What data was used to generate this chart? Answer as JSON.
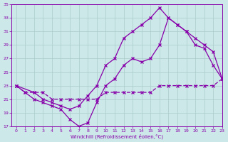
{
  "xlabel": "Windchill (Refroidissement éolien,°C)",
  "xlim": [
    -0.5,
    23
  ],
  "ylim": [
    17,
    35
  ],
  "yticks": [
    17,
    19,
    21,
    23,
    25,
    27,
    29,
    31,
    33,
    35
  ],
  "xticks": [
    0,
    1,
    2,
    3,
    4,
    5,
    6,
    7,
    8,
    9,
    10,
    11,
    12,
    13,
    14,
    15,
    16,
    17,
    18,
    19,
    20,
    21,
    22,
    23
  ],
  "bg_color": "#cce8e8",
  "grid_color": "#aacccc",
  "line_color": "#8800aa",
  "line1_x": [
    0,
    1,
    2,
    3,
    4,
    5,
    6,
    7,
    8,
    9,
    10,
    11,
    12,
    13,
    14,
    15,
    16,
    17,
    18,
    19,
    20,
    21,
    22,
    23
  ],
  "line1_y": [
    23,
    22,
    22,
    22,
    21,
    21,
    21,
    21,
    21,
    21,
    22,
    22,
    22,
    22,
    22,
    22,
    23,
    23,
    23,
    23,
    23,
    23,
    23,
    24
  ],
  "line2_x": [
    0,
    2,
    3,
    4,
    5,
    6,
    7,
    8,
    9,
    10,
    11,
    12,
    13,
    14,
    15,
    16,
    17,
    18,
    19,
    20,
    21,
    22,
    23
  ],
  "line2_y": [
    23,
    22,
    21,
    20.5,
    20,
    19.5,
    20,
    21.5,
    23,
    26,
    27,
    30,
    31,
    32,
    33,
    34.5,
    33,
    32,
    31,
    29,
    28.5,
    26,
    24
  ],
  "line3_x": [
    0,
    1,
    2,
    3,
    4,
    5,
    6,
    7,
    8,
    9,
    10,
    11,
    12,
    13,
    14,
    15,
    16,
    17,
    18,
    19,
    20,
    21,
    22,
    23
  ],
  "line3_y": [
    23,
    22,
    21,
    20.5,
    20,
    19.5,
    18,
    17,
    17.5,
    20.5,
    23,
    24,
    26,
    27,
    26.5,
    27,
    29,
    33,
    32,
    31,
    30,
    29,
    28,
    24
  ]
}
